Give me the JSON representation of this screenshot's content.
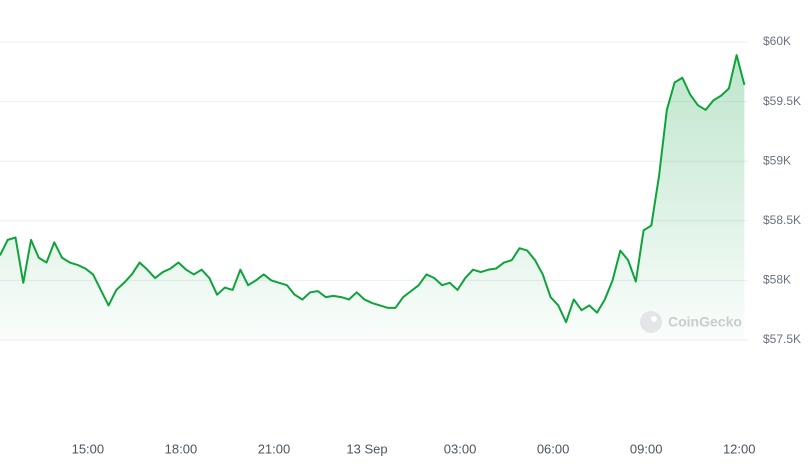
{
  "chart_data": {
    "type": "area",
    "watermark": "CoinGecko",
    "color": "#0ea33b",
    "grid": true,
    "x": [
      "12 Sep 12:10",
      "12 Sep 12:25",
      "12 Sep 12:40",
      "12 Sep 12:55",
      "12 Sep 13:10",
      "12 Sep 13:25",
      "12 Sep 13:40",
      "12 Sep 13:55",
      "12 Sep 14:10",
      "12 Sep 14:25",
      "12 Sep 14:40",
      "12 Sep 14:55",
      "12 Sep 15:10",
      "12 Sep 15:25",
      "12 Sep 15:40",
      "12 Sep 15:55",
      "12 Sep 16:10",
      "12 Sep 16:25",
      "12 Sep 16:40",
      "12 Sep 16:55",
      "12 Sep 17:10",
      "12 Sep 17:25",
      "12 Sep 17:40",
      "12 Sep 17:55",
      "12 Sep 18:10",
      "12 Sep 18:25",
      "12 Sep 18:40",
      "12 Sep 18:55",
      "12 Sep 19:10",
      "12 Sep 19:25",
      "12 Sep 19:40",
      "12 Sep 19:55",
      "12 Sep 20:10",
      "12 Sep 20:25",
      "12 Sep 20:40",
      "12 Sep 20:55",
      "12 Sep 21:10",
      "12 Sep 21:25",
      "12 Sep 21:40",
      "12 Sep 21:55",
      "12 Sep 22:10",
      "12 Sep 22:25",
      "12 Sep 22:40",
      "12 Sep 22:55",
      "12 Sep 23:10",
      "12 Sep 23:25",
      "12 Sep 23:40",
      "12 Sep 23:55",
      "13 Sep 00:10",
      "13 Sep 00:25",
      "13 Sep 00:40",
      "13 Sep 00:55",
      "13 Sep 01:10",
      "13 Sep 01:25",
      "13 Sep 01:40",
      "13 Sep 01:55",
      "13 Sep 02:10",
      "13 Sep 02:25",
      "13 Sep 02:40",
      "13 Sep 02:55",
      "13 Sep 03:10",
      "13 Sep 03:25",
      "13 Sep 03:40",
      "13 Sep 03:55",
      "13 Sep 04:10",
      "13 Sep 04:25",
      "13 Sep 04:40",
      "13 Sep 04:55",
      "13 Sep 05:10",
      "13 Sep 05:25",
      "13 Sep 05:40",
      "13 Sep 05:55",
      "13 Sep 06:10",
      "13 Sep 06:25",
      "13 Sep 06:40",
      "13 Sep 06:55",
      "13 Sep 07:10",
      "13 Sep 07:25",
      "13 Sep 07:40",
      "13 Sep 07:55",
      "13 Sep 08:10",
      "13 Sep 08:25",
      "13 Sep 08:40",
      "13 Sep 08:55",
      "13 Sep 09:10",
      "13 Sep 09:25",
      "13 Sep 09:40",
      "13 Sep 09:55",
      "13 Sep 10:10",
      "13 Sep 10:25",
      "13 Sep 10:40",
      "13 Sep 10:55",
      "13 Sep 11:10",
      "13 Sep 11:25",
      "13 Sep 11:40",
      "13 Sep 11:55",
      "13 Sep 12:10"
    ],
    "values": [
      58210,
      58340,
      58360,
      57980,
      58340,
      58190,
      58150,
      58320,
      58190,
      58150,
      58130,
      58100,
      58050,
      57920,
      57790,
      57920,
      57980,
      58050,
      58150,
      58090,
      58020,
      58070,
      58100,
      58150,
      58090,
      58050,
      58090,
      58020,
      57880,
      57940,
      57920,
      58090,
      57960,
      58000,
      58050,
      58000,
      57980,
      57960,
      57880,
      57840,
      57900,
      57910,
      57860,
      57870,
      57860,
      57840,
      57900,
      57840,
      57810,
      57790,
      57770,
      57770,
      57860,
      57910,
      57960,
      58050,
      58020,
      57960,
      57980,
      57920,
      58020,
      58090,
      58070,
      58090,
      58100,
      58150,
      58170,
      58270,
      58250,
      58170,
      58050,
      57860,
      57790,
      57650,
      57840,
      57750,
      57790,
      57730,
      57840,
      58000,
      58250,
      58170,
      57990,
      58420,
      58460,
      58880,
      59430,
      59660,
      59700,
      59560,
      59470,
      59430,
      59510,
      59550,
      59610,
      59890,
      59640
    ],
    "xlim": [
      "12 Sep 12:10",
      "13 Sep 12:17"
    ],
    "xticks": [
      {
        "value": "12 Sep 15:00",
        "label": "15:00"
      },
      {
        "value": "12 Sep 18:00",
        "label": "18:00"
      },
      {
        "value": "12 Sep 21:00",
        "label": "21:00"
      },
      {
        "value": "13 Sep 00:00",
        "label": "13 Sep"
      },
      {
        "value": "13 Sep 03:00",
        "label": "03:00"
      },
      {
        "value": "13 Sep 06:00",
        "label": "06:00"
      },
      {
        "value": "13 Sep 09:00",
        "label": "09:00"
      },
      {
        "value": "13 Sep 12:00",
        "label": "12:00"
      }
    ],
    "ylim": [
      57500,
      60000
    ],
    "yticks": [
      {
        "value": 57500,
        "label": "$57.5K"
      },
      {
        "value": 58000,
        "label": "$58K"
      },
      {
        "value": 58500,
        "label": "$58.5K"
      },
      {
        "value": 59000,
        "label": "$59K"
      },
      {
        "value": 59500,
        "label": "$59.5K"
      },
      {
        "value": 60000,
        "label": "$60K"
      }
    ]
  }
}
